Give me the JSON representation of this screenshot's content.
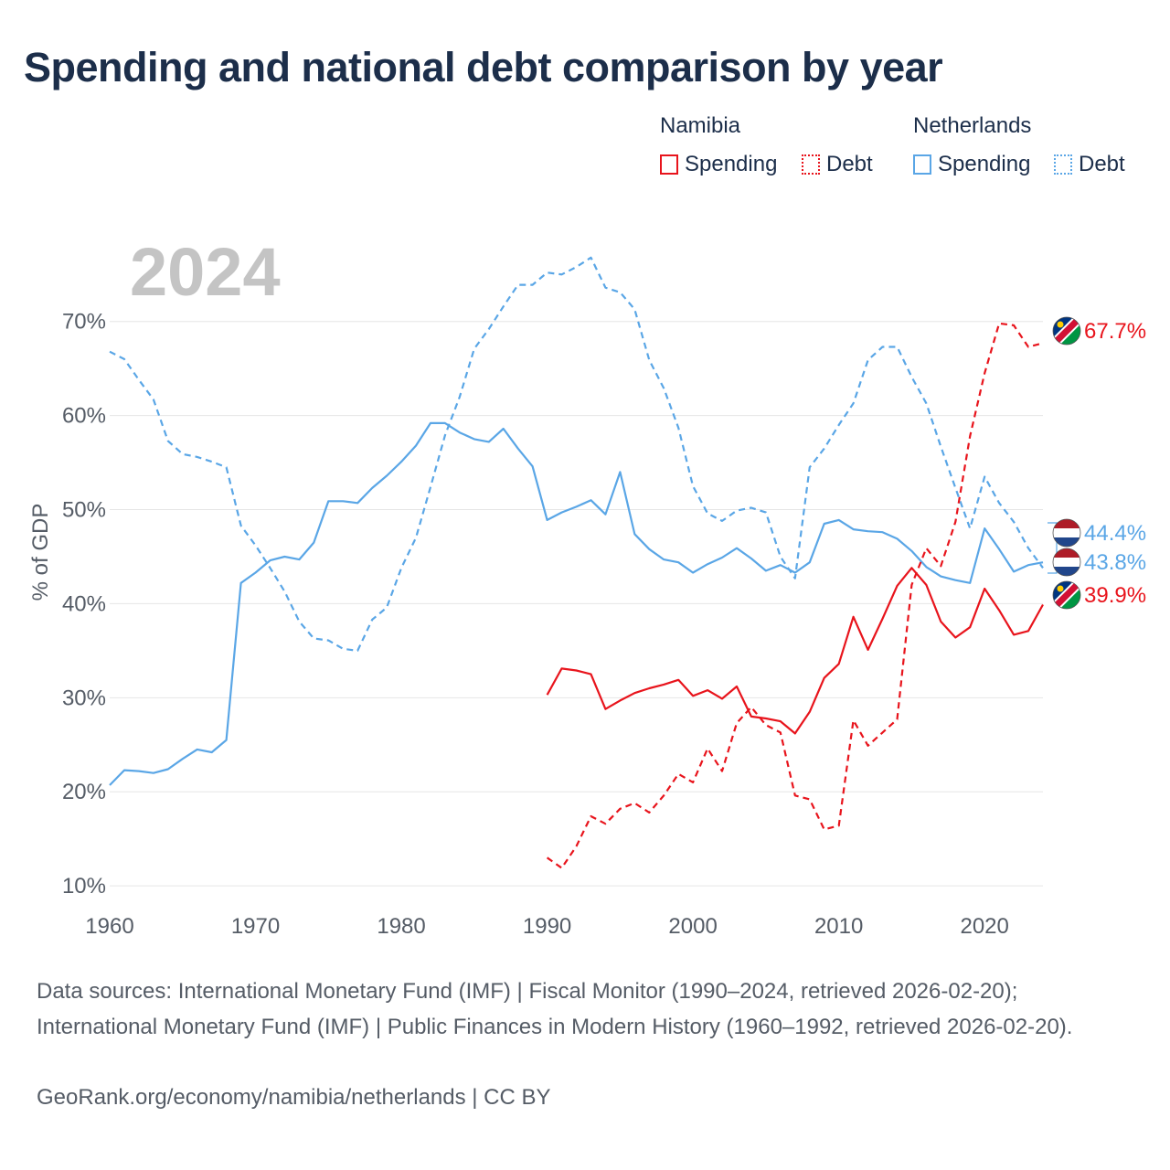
{
  "title": "Spending and national debt comparison by year",
  "legend": {
    "groups": [
      {
        "country": "Namibia",
        "color": "#e8141c",
        "items": [
          {
            "label": "Spending",
            "style": "solid"
          },
          {
            "label": "Debt",
            "style": "dotted"
          }
        ]
      },
      {
        "country": "Netherlands",
        "color": "#5aa6e6",
        "items": [
          {
            "label": "Spending",
            "style": "solid"
          },
          {
            "label": "Debt",
            "style": "dotted"
          }
        ]
      }
    ]
  },
  "year_watermark": "2024",
  "chart_data": {
    "type": "line",
    "ylabel": "% of GDP",
    "xlim": [
      1960,
      2024
    ],
    "ylim": [
      7,
      76
    ],
    "x_ticks": [
      1960,
      1970,
      1980,
      1990,
      2000,
      2010,
      2020
    ],
    "y_ticks": [
      10,
      20,
      30,
      40,
      50,
      60,
      70
    ],
    "y_tick_labels": [
      "10%",
      "20%",
      "30%",
      "40%",
      "50%",
      "60%",
      "70%"
    ],
    "series": [
      {
        "name": "Netherlands Spending",
        "country": "Netherlands",
        "color": "#5aa6e6",
        "dash": "solid",
        "x": [
          1960,
          1961,
          1962,
          1963,
          1964,
          1965,
          1966,
          1967,
          1968,
          1969,
          1970,
          1971,
          1972,
          1973,
          1974,
          1975,
          1976,
          1977,
          1978,
          1979,
          1980,
          1981,
          1982,
          1983,
          1984,
          1985,
          1986,
          1987,
          1988,
          1989,
          1990,
          1991,
          1992,
          1993,
          1994,
          1995,
          1996,
          1997,
          1998,
          1999,
          2000,
          2001,
          2002,
          2003,
          2004,
          2005,
          2006,
          2007,
          2008,
          2009,
          2010,
          2011,
          2012,
          2013,
          2014,
          2015,
          2016,
          2017,
          2018,
          2019,
          2020,
          2021,
          2022,
          2023,
          2024
        ],
        "y": [
          20.7,
          22.3,
          22.2,
          22.0,
          22.4,
          23.5,
          24.5,
          24.2,
          25.5,
          42.2,
          43.3,
          44.6,
          45.0,
          44.7,
          46.5,
          50.9,
          50.9,
          50.7,
          52.3,
          53.6,
          55.1,
          56.8,
          59.2,
          59.2,
          58.2,
          57.5,
          57.2,
          58.6,
          56.5,
          54.6,
          48.9,
          49.7,
          50.3,
          51.0,
          49.5,
          54.0,
          47.4,
          45.8,
          44.7,
          44.4,
          43.3,
          44.2,
          44.9,
          45.9,
          44.8,
          43.5,
          44.1,
          43.3,
          44.4,
          48.5,
          48.9,
          47.9,
          47.7,
          47.6,
          46.9,
          45.6,
          43.9,
          42.9,
          42.5,
          42.2,
          48.0,
          45.8,
          43.4,
          44.1,
          44.4
        ],
        "end_label": "44.4%"
      },
      {
        "name": "Netherlands Debt",
        "country": "Netherlands",
        "color": "#5aa6e6",
        "dash": "dashed",
        "x": [
          1960,
          1961,
          1962,
          1963,
          1964,
          1965,
          1966,
          1967,
          1968,
          1969,
          1970,
          1971,
          1972,
          1973,
          1974,
          1975,
          1976,
          1977,
          1978,
          1979,
          1980,
          1981,
          1982,
          1983,
          1984,
          1985,
          1986,
          1987,
          1988,
          1989,
          1990,
          1991,
          1992,
          1993,
          1994,
          1995,
          1996,
          1997,
          1998,
          1999,
          2000,
          2001,
          2002,
          2003,
          2004,
          2005,
          2006,
          2007,
          2008,
          2009,
          2010,
          2011,
          2012,
          2013,
          2014,
          2015,
          2016,
          2017,
          2018,
          2019,
          2020,
          2021,
          2022,
          2023,
          2024
        ],
        "y": [
          66.8,
          66.0,
          63.8,
          61.7,
          57.3,
          55.9,
          55.6,
          55.1,
          54.5,
          48.3,
          46.2,
          43.8,
          41.3,
          38.1,
          36.3,
          36.1,
          35.2,
          35.0,
          38.3,
          39.6,
          43.8,
          47.0,
          52.4,
          57.9,
          62.0,
          67.1,
          69.2,
          71.6,
          73.9,
          73.9,
          75.2,
          75.0,
          75.8,
          76.8,
          73.6,
          73.1,
          71.3,
          65.9,
          62.9,
          58.7,
          52.5,
          49.6,
          48.8,
          49.9,
          50.2,
          49.7,
          45.0,
          42.7,
          54.5,
          56.5,
          59.0,
          61.3,
          65.9,
          67.3,
          67.3,
          64.1,
          61.3,
          56.7,
          52.3,
          48.0,
          53.5,
          50.7,
          48.7,
          45.9,
          43.8
        ],
        "end_label": "43.8%"
      },
      {
        "name": "Namibia Spending",
        "country": "Namibia",
        "color": "#e8141c",
        "dash": "solid",
        "x": [
          1990,
          1991,
          1992,
          1993,
          1994,
          1995,
          1996,
          1997,
          1998,
          1999,
          2000,
          2001,
          2002,
          2003,
          2004,
          2005,
          2006,
          2007,
          2008,
          2009,
          2010,
          2011,
          2012,
          2013,
          2014,
          2015,
          2016,
          2017,
          2018,
          2019,
          2020,
          2021,
          2022,
          2023,
          2024
        ],
        "y": [
          30.3,
          33.1,
          32.9,
          32.5,
          28.8,
          29.7,
          30.5,
          31.0,
          31.4,
          31.9,
          30.2,
          30.8,
          29.9,
          31.2,
          28.0,
          27.8,
          27.5,
          26.2,
          28.5,
          32.1,
          33.6,
          38.6,
          35.1,
          38.4,
          41.9,
          43.8,
          42.0,
          38.1,
          36.4,
          37.5,
          41.6,
          39.3,
          36.7,
          37.1,
          39.9
        ],
        "end_label": "39.9%"
      },
      {
        "name": "Namibia Debt",
        "country": "Namibia",
        "color": "#e8141c",
        "dash": "dashed",
        "x": [
          1990,
          1991,
          1992,
          1993,
          1994,
          1995,
          1996,
          1997,
          1998,
          1999,
          2000,
          2001,
          2002,
          2003,
          2004,
          2005,
          2006,
          2007,
          2008,
          2009,
          2010,
          2011,
          2012,
          2013,
          2014,
          2015,
          2016,
          2017,
          2018,
          2019,
          2020,
          2021,
          2022,
          2023,
          2024
        ],
        "y": [
          13.0,
          11.9,
          14.2,
          17.4,
          16.6,
          18.2,
          18.8,
          17.8,
          19.6,
          21.9,
          21.0,
          24.6,
          22.2,
          27.3,
          29.0,
          27.1,
          26.3,
          19.6,
          19.2,
          16.0,
          16.4,
          27.6,
          24.9,
          26.3,
          27.7,
          42.0,
          45.9,
          44.0,
          48.7,
          57.8,
          64.5,
          69.8,
          69.6,
          67.3,
          67.7
        ],
        "end_label": "67.7%"
      }
    ]
  },
  "footer": {
    "sources": "Data sources: International Monetary Fund (IMF) | Fiscal Monitor (1990–2024, retrieved 2026-02-20); International Monetary Fund (IMF) | Public Finances in Modern History (1960–1992, retrieved 2026-02-20).",
    "link": "GeoRank.org/economy/namibia/netherlands | CC BY"
  }
}
